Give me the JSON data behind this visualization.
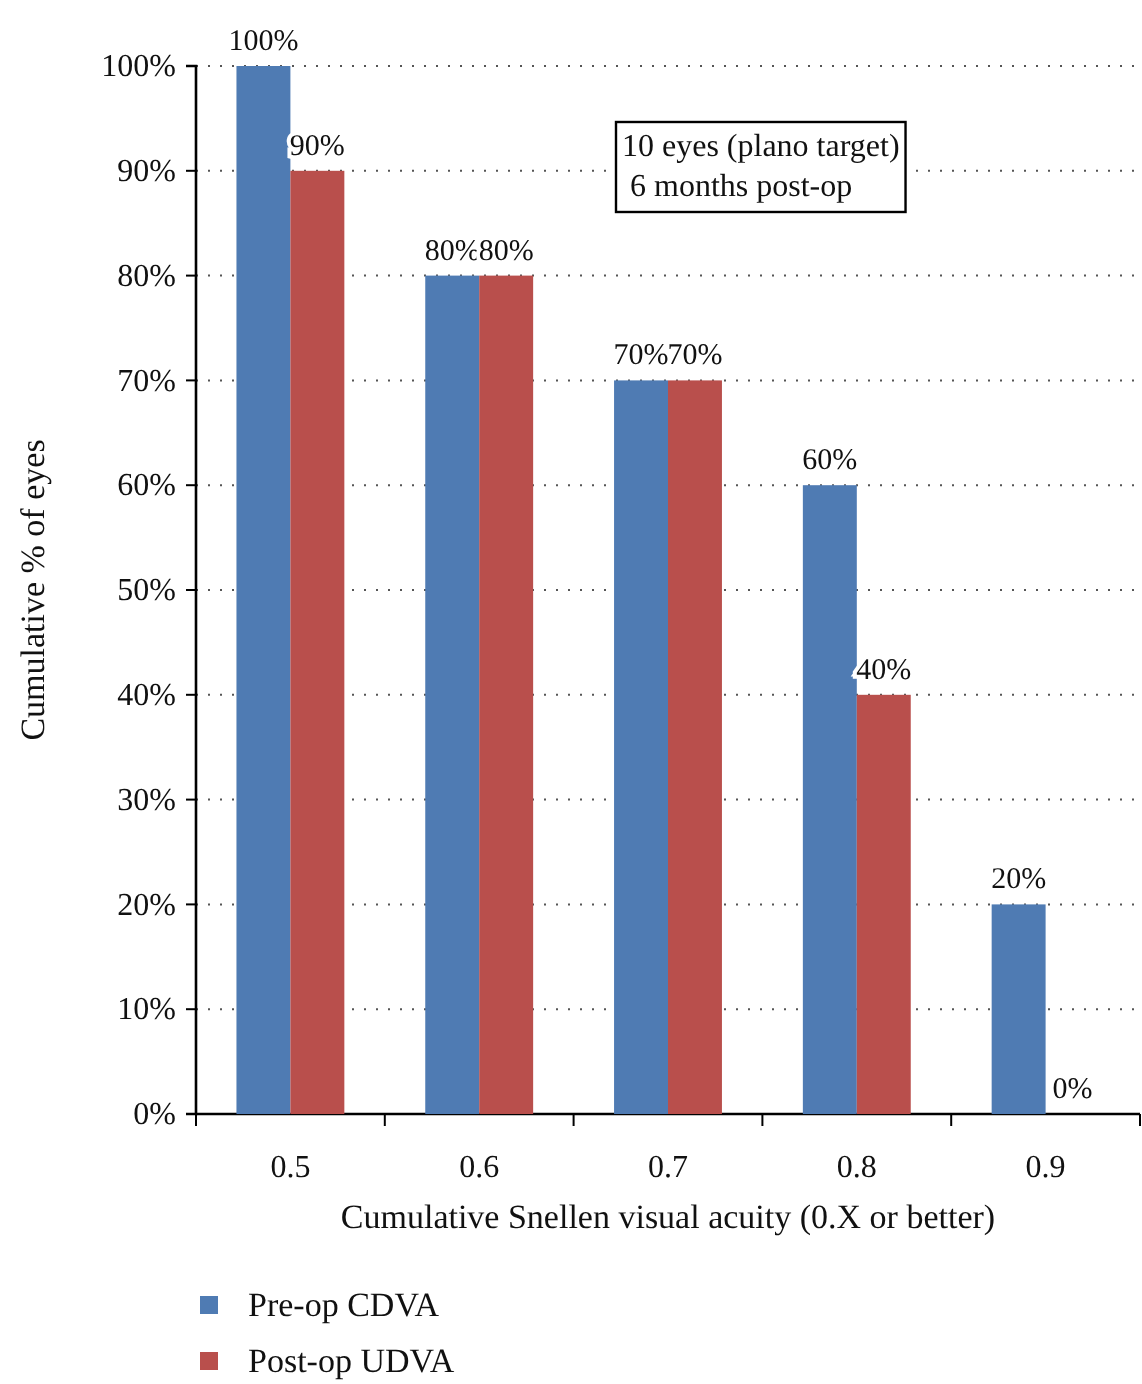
{
  "chart_data": {
    "type": "bar",
    "xlabel": "Cumulative Snellen visual acuity (0.X or better)",
    "ylabel": "Cumulative % of eyes",
    "categories": [
      "0.5",
      "0.6",
      "0.7",
      "0.8",
      "0.9"
    ],
    "series": [
      {
        "name": "Pre-op CDVA",
        "color": "#4f7bb3",
        "values": [
          100,
          80,
          70,
          60,
          20
        ],
        "value_labels": [
          "100%",
          "80%",
          "70%",
          "60%",
          "20%"
        ]
      },
      {
        "name": "Post-op UDVA",
        "color": "#b94f4c",
        "values": [
          90,
          80,
          70,
          40,
          0
        ],
        "value_labels": [
          "90%",
          "80%",
          "70%",
          "40%",
          "0%"
        ]
      }
    ],
    "ylim": [
      0,
      100
    ],
    "yticks": [
      {
        "value": 0,
        "label": "0%"
      },
      {
        "value": 10,
        "label": "10%"
      },
      {
        "value": 20,
        "label": "20%"
      },
      {
        "value": 30,
        "label": "30%"
      },
      {
        "value": 40,
        "label": "40%"
      },
      {
        "value": 50,
        "label": "50%"
      },
      {
        "value": 60,
        "label": "60%"
      },
      {
        "value": 70,
        "label": "70%"
      },
      {
        "value": 80,
        "label": "80%"
      },
      {
        "value": 90,
        "label": "90%"
      },
      {
        "value": 100,
        "label": "100%"
      }
    ],
    "grid": "y",
    "legend": "bottom",
    "annotations": [
      "10 eyes (plano target)\n 6 months post-op"
    ]
  }
}
